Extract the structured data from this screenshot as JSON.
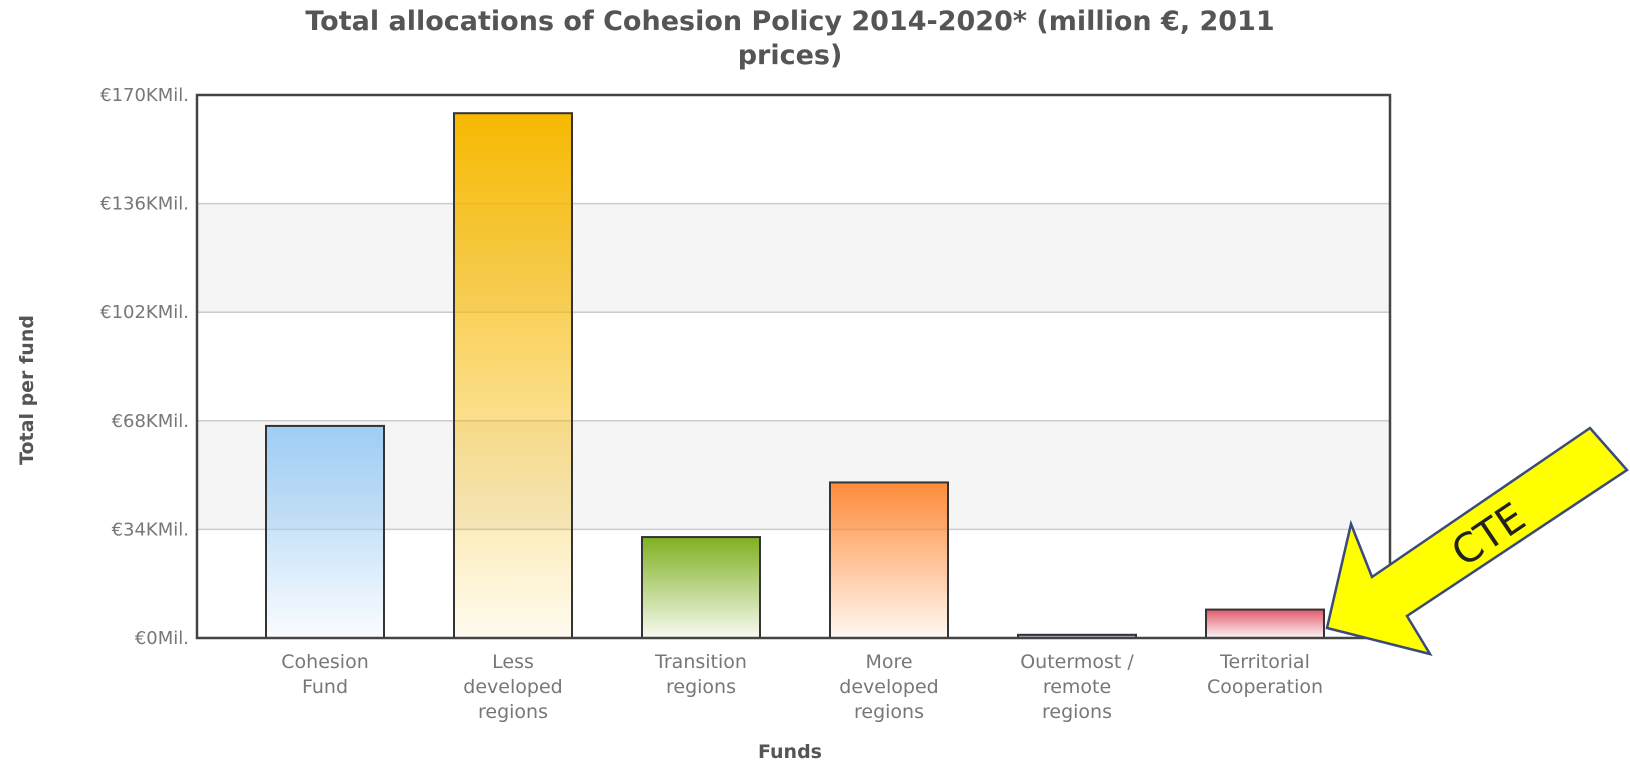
{
  "chart_data": {
    "type": "bar",
    "title": "Total allocations of Cohesion Policy 2014-2020* (million €, 2011 prices)",
    "title_lines": [
      "Total allocations of Cohesion Policy 2014-2020* (million €, 2011",
      "prices)"
    ],
    "xlabel": "Funds",
    "ylabel": "Total per fund",
    "ylim": [
      0,
      170
    ],
    "yticks": [
      0,
      34,
      68,
      102,
      136,
      170
    ],
    "ytick_labels": [
      "€0Mil.",
      "€34KMil.",
      "€68KMil.",
      "€102KMil.",
      "€136KMil.",
      "€170KMil."
    ],
    "categories": [
      [
        "Cohesion",
        "Fund"
      ],
      [
        "Less",
        "developed",
        "regions"
      ],
      [
        "Transition",
        "regions"
      ],
      [
        "More",
        "developed",
        "regions"
      ],
      [
        "Outermost /",
        "remote",
        "regions"
      ],
      [
        "Territorial",
        "Cooperation"
      ]
    ],
    "values": [
      66.4,
      164.3,
      31.6,
      48.7,
      1.0,
      8.9
    ],
    "colors": [
      "#9ecdf5",
      "#f6b800",
      "#7fb020",
      "#ff8c3a",
      "#8c6ab0",
      "#e05a6a"
    ],
    "grid": true,
    "legend": "none"
  },
  "annotation": {
    "label": "CTE",
    "color": "#ffff00",
    "target_category": "Territorial Cooperation"
  }
}
